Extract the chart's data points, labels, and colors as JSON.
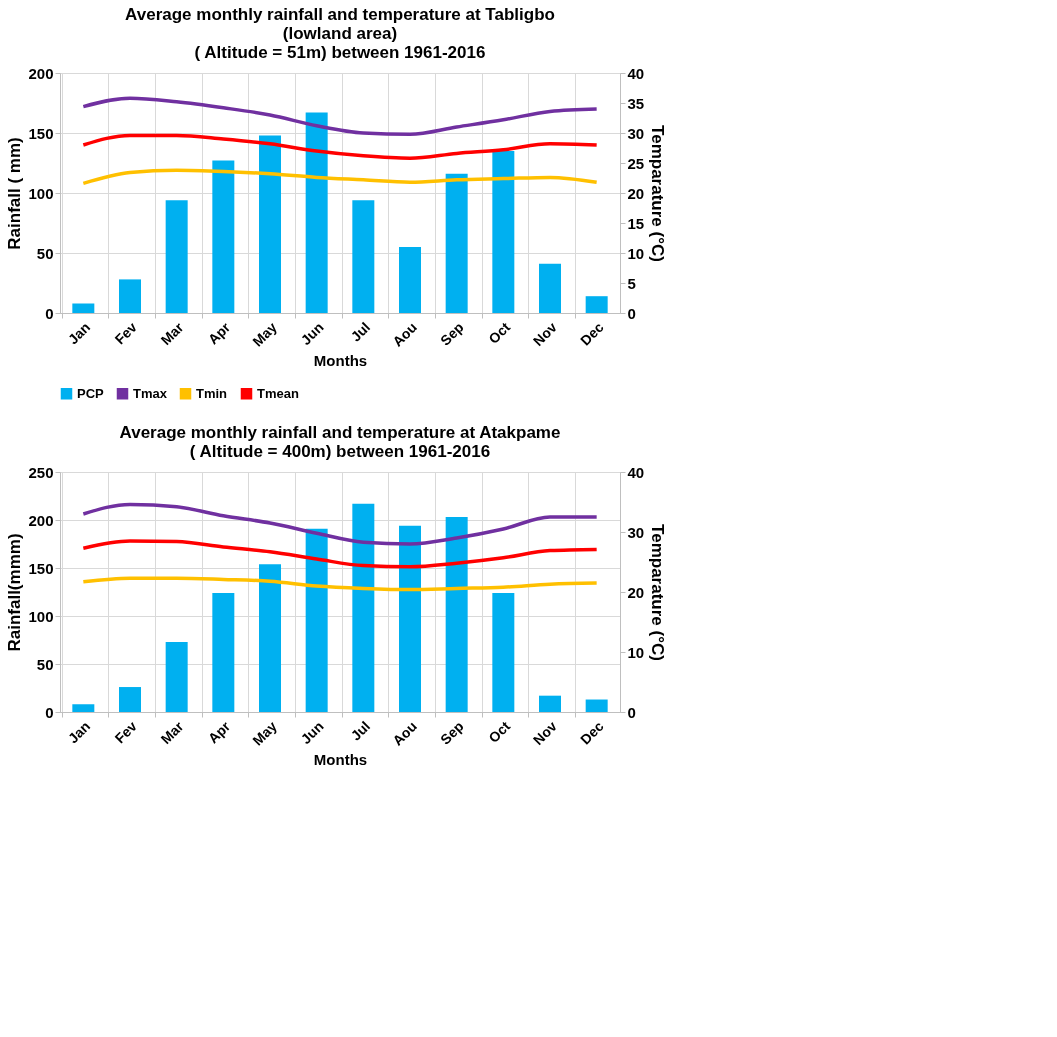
{
  "chart_data": [
    {
      "type": "bar",
      "title": "Average monthly rainfall and temperature at Tabligbo\n(lowland area)\n( Altitude = 51m) between 1961-2016",
      "xlabel": "Months",
      "ylabel": "Rainfall ( mm)",
      "y2label": "Temparature (°C)",
      "categories": [
        "Jan",
        "Fev",
        "Mar",
        "Apr",
        "May",
        "Jun",
        "Jul",
        "Aou",
        "Sep",
        "Oct",
        "Nov",
        "Dec"
      ],
      "series": [
        {
          "name": "PCP",
          "color": "#00b0f0",
          "values": [
            8,
            28,
            94,
            127,
            148,
            167,
            94,
            55,
            116,
            135,
            41,
            14
          ]
        },
        {
          "name": "Tmax",
          "type": "line",
          "axis": "y2",
          "color": "#7030a0",
          "values": [
            34.4,
            35.8,
            35.2,
            34.2,
            33.0,
            31.2,
            30.0,
            29.8,
            31.0,
            32.2,
            33.6,
            34.0
          ]
        },
        {
          "name": "Tmin",
          "type": "line",
          "axis": "y2",
          "color": "#ffc000",
          "values": [
            21.6,
            23.4,
            23.8,
            23.6,
            23.2,
            22.6,
            22.2,
            21.8,
            22.2,
            22.4,
            22.6,
            21.8
          ]
        },
        {
          "name": "Tmean",
          "type": "line",
          "axis": "y2",
          "color": "#ff0000",
          "values": [
            28.0,
            29.6,
            29.6,
            29.0,
            28.2,
            27.0,
            26.2,
            25.8,
            26.6,
            27.2,
            28.2,
            28.0
          ]
        }
      ],
      "ylim": [
        0,
        200
      ],
      "yticks": [
        0,
        50,
        100,
        150,
        200
      ],
      "y2lim": [
        0,
        40
      ],
      "y2ticks": [
        0,
        5,
        10,
        15,
        20,
        25,
        30,
        35,
        40
      ],
      "grid": true,
      "legend": "bottom"
    },
    {
      "type": "bar",
      "title": "Average monthly rainfall and temperature at Atakpame\n( Altitude = 400m) between 1961-2016",
      "xlabel": "Months",
      "ylabel": "Rainfall(mmm)",
      "y2label": "Temparature (°C)",
      "categories": [
        "Jan",
        "Fev",
        "Mar",
        "Apr",
        "May",
        "Jun",
        "Jul",
        "Aou",
        "Sep",
        "Oct",
        "Nov",
        "Dec"
      ],
      "series": [
        {
          "color": "#00b0f0",
          "values": [
            8,
            26,
            73,
            124,
            154,
            191,
            217,
            194,
            203,
            124,
            17,
            13
          ]
        },
        {
          "type": "line",
          "axis": "y2",
          "color": "#7030a0",
          "values": [
            33.0,
            34.6,
            34.2,
            32.7,
            31.5,
            29.8,
            28.3,
            28.0,
            29.0,
            30.5,
            32.5,
            32.5
          ]
        },
        {
          "type": "line",
          "axis": "y2",
          "color": "#ffc000",
          "values": [
            21.7,
            22.3,
            22.3,
            22.1,
            21.8,
            21.0,
            20.6,
            20.4,
            20.6,
            20.8,
            21.3,
            21.5
          ]
        },
        {
          "type": "line",
          "axis": "y2",
          "color": "#ff0000",
          "values": [
            27.3,
            28.5,
            28.4,
            27.5,
            26.7,
            25.5,
            24.4,
            24.2,
            24.8,
            25.7,
            26.9,
            27.1
          ]
        }
      ],
      "ylim": [
        0,
        250
      ],
      "yticks": [
        0,
        50,
        100,
        150,
        200,
        250
      ],
      "y2lim": [
        0,
        40
      ],
      "y2ticks": [
        0,
        10,
        20,
        30,
        40
      ],
      "grid": true
    }
  ]
}
